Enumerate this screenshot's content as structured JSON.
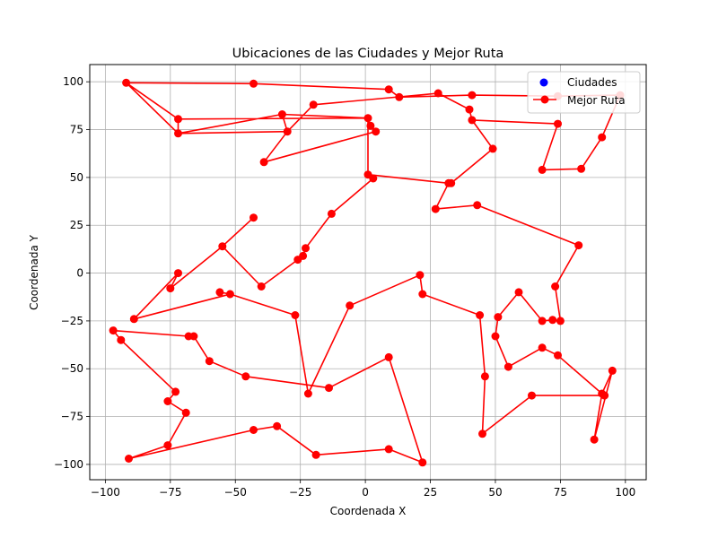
{
  "chart_data": {
    "type": "line",
    "title": "Ubicaciones de las Ciudades y Mejor Ruta",
    "xlabel": "Coordenada X",
    "ylabel": "Coordenada Y",
    "xlim": [
      -106,
      108
    ],
    "ylim": [
      -108,
      109
    ],
    "xticks": [
      -100,
      -75,
      -50,
      -25,
      0,
      25,
      50,
      75,
      100
    ],
    "yticks": [
      -100,
      -75,
      -50,
      -25,
      0,
      25,
      50,
      75,
      100
    ],
    "grid": true,
    "legend": "top-right",
    "series": [
      {
        "name": "Ciudades",
        "kind": "scatter",
        "color": "#0000ff"
      },
      {
        "name": "Mejor Ruta",
        "kind": "line",
        "color": "#ff0000",
        "points": [
          [
            -92,
            99.5
          ],
          [
            -72,
            80.5
          ],
          [
            1,
            81
          ],
          [
            2,
            77
          ],
          [
            4,
            74
          ],
          [
            -39,
            58
          ],
          [
            -30,
            74
          ],
          [
            -32,
            83
          ],
          [
            -72,
            73
          ],
          [
            -92,
            99.5
          ],
          [
            -43,
            99
          ],
          [
            9,
            96
          ],
          [
            13,
            92
          ],
          [
            13,
            92
          ],
          [
            41,
            93
          ],
          [
            74,
            92.5
          ],
          [
            98,
            93
          ],
          [
            91,
            71
          ],
          [
            83,
            54.5
          ],
          [
            68,
            54
          ],
          [
            74,
            78
          ],
          [
            41,
            80
          ],
          [
            40,
            85.5
          ],
          [
            28,
            94
          ],
          [
            -20,
            88
          ],
          [
            -30,
            74
          ],
          [
            -39,
            58
          ],
          [
            -30,
            74
          ],
          [
            -32,
            83
          ],
          [
            1,
            81
          ],
          [
            1,
            51.5
          ],
          [
            3,
            49.5
          ],
          [
            -13,
            31
          ],
          [
            -23,
            13
          ],
          [
            -24,
            9
          ],
          [
            -26,
            7
          ],
          [
            -40,
            -7
          ],
          [
            -55,
            14
          ],
          [
            -43,
            29
          ],
          [
            -55,
            14
          ],
          [
            -75,
            -8
          ],
          [
            -72,
            0
          ],
          [
            -89,
            -24
          ],
          [
            -52,
            -11
          ],
          [
            -56,
            -10
          ],
          [
            -52,
            -11
          ],
          [
            -27,
            -22
          ],
          [
            -22,
            -63
          ],
          [
            -6,
            -17
          ],
          [
            21,
            -1
          ],
          [
            22,
            -11
          ],
          [
            44,
            -22
          ],
          [
            46,
            -54
          ],
          [
            45,
            -84
          ],
          [
            64,
            -64
          ],
          [
            92,
            -64
          ],
          [
            91,
            -63
          ],
          [
            95,
            -51
          ],
          [
            88,
            -87
          ],
          [
            91,
            -63
          ],
          [
            74,
            -43
          ],
          [
            68,
            -39
          ],
          [
            55,
            -49
          ],
          [
            50,
            -33
          ],
          [
            51,
            -23
          ],
          [
            59,
            -10
          ],
          [
            68,
            -25
          ],
          [
            72,
            -24.5
          ],
          [
            75,
            -25
          ],
          [
            73,
            -7
          ],
          [
            82,
            14.5
          ],
          [
            43,
            35.5
          ],
          [
            27,
            33.5
          ],
          [
            32,
            47
          ],
          [
            33,
            47
          ],
          [
            49,
            65
          ],
          [
            41,
            80
          ],
          [
            40,
            85.5
          ],
          [
            28,
            94
          ],
          [
            13,
            92
          ],
          [
            9,
            96
          ],
          [
            -43,
            99
          ],
          [
            -92,
            99.5
          ],
          [
            -72,
            80.5
          ],
          [
            -72,
            73
          ],
          [
            -30,
            74
          ],
          [
            -20,
            88
          ],
          [
            28,
            94
          ],
          [
            40,
            85.5
          ],
          [
            41,
            80
          ],
          [
            49,
            65
          ],
          [
            33,
            47
          ],
          [
            32,
            47
          ],
          [
            1,
            51.5
          ]
        ]
      }
    ],
    "route_tail": [
      [
        -97,
        -30
      ],
      [
        -94,
        -35
      ],
      [
        -73,
        -62
      ],
      [
        -76,
        -67
      ],
      [
        -69,
        -73
      ],
      [
        -76,
        -90
      ],
      [
        -91,
        -97
      ],
      [
        -43,
        -82
      ],
      [
        -34,
        -80
      ],
      [
        -19,
        -95
      ],
      [
        9,
        -92
      ],
      [
        22,
        -99
      ],
      [
        9,
        -44
      ],
      [
        -14,
        -60
      ],
      [
        -46,
        -54
      ],
      [
        -60,
        -46
      ],
      [
        -66,
        -33
      ],
      [
        -68,
        -33
      ],
      [
        -97,
        -30
      ]
    ]
  },
  "legend": {
    "items": [
      {
        "label": "Ciudades"
      },
      {
        "label": "Mejor Ruta"
      }
    ]
  }
}
